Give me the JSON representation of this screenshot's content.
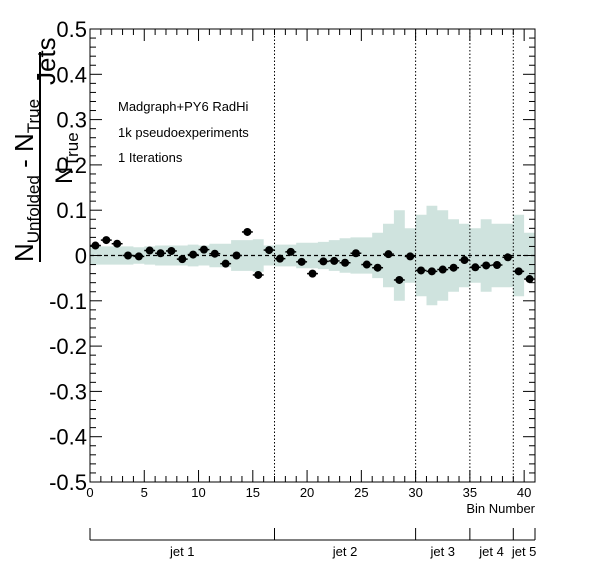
{
  "chart_data": {
    "type": "scatter",
    "title": "",
    "xlabel": "Bin Number",
    "ylabel": {
      "main": "N",
      "sub1": "Unfolded",
      "minus": " - N",
      "sub2": "True",
      "tail": "Jets",
      "denom": "N",
      "denom_sub": "True"
    },
    "xlim": [
      0,
      41
    ],
    "ylim": [
      -0.5,
      0.5
    ],
    "x_ticks": [
      0,
      5,
      10,
      15,
      20,
      25,
      30,
      35,
      40
    ],
    "y_ticks": [
      -0.5,
      -0.4,
      -0.3,
      -0.2,
      -0.1,
      0,
      0.1,
      0.2,
      0.3,
      0.4,
      0.5
    ],
    "y_tick_labels": [
      "-0.5",
      "-0.4",
      "-0.3",
      "-0.2",
      "-0.1",
      "0",
      "0.1",
      "0.2",
      "0.3",
      "0.4",
      "0.5"
    ],
    "annotations": [
      "Madgraph+PY6 RadHi",
      "1k pseudoexperiments",
      "1 Iterations"
    ],
    "reference_line_y": 0,
    "jet_boundaries": [
      17,
      30,
      35,
      39
    ],
    "jet_groups": [
      {
        "label": "jet 1",
        "start": 0,
        "end": 17
      },
      {
        "label": "jet 2",
        "start": 17,
        "end": 30
      },
      {
        "label": "jet 3",
        "start": 30,
        "end": 35
      },
      {
        "label": "jet 4",
        "start": 35,
        "end": 39
      },
      {
        "label": "jet 5",
        "start": 39,
        "end": 41
      }
    ],
    "x": [
      0.5,
      1.5,
      2.5,
      3.5,
      4.5,
      5.5,
      6.5,
      7.5,
      8.5,
      9.5,
      10.5,
      11.5,
      12.5,
      13.5,
      14.5,
      15.5,
      16.5,
      17.5,
      18.5,
      19.5,
      20.5,
      21.5,
      22.5,
      23.5,
      24.5,
      25.5,
      26.5,
      27.5,
      28.5,
      29.5,
      30.5,
      31.5,
      32.5,
      33.5,
      34.5,
      35.5,
      36.5,
      37.5,
      38.5,
      39.5,
      40.5
    ],
    "y": [
      0.022,
      0.034,
      0.026,
      0.0,
      -0.002,
      0.011,
      0.005,
      0.01,
      -0.008,
      0.002,
      0.013,
      0.004,
      -0.018,
      0.0,
      0.052,
      -0.043,
      0.012,
      -0.007,
      0.008,
      -0.014,
      -0.04,
      -0.013,
      -0.012,
      -0.016,
      0.005,
      -0.02,
      -0.027,
      0.003,
      -0.054,
      -0.002,
      -0.033,
      -0.035,
      -0.031,
      -0.027,
      -0.01,
      -0.026,
      -0.022,
      -0.021,
      -0.004,
      -0.035,
      -0.052
    ],
    "yerr": [
      0.008,
      0.008,
      0.008,
      0.008,
      0.008,
      0.008,
      0.008,
      0.008,
      0.008,
      0.008,
      0.008,
      0.008,
      0.008,
      0.008,
      0.008,
      0.008,
      0.008,
      0.008,
      0.008,
      0.008,
      0.008,
      0.008,
      0.008,
      0.008,
      0.008,
      0.008,
      0.008,
      0.008,
      0.008,
      0.008,
      0.008,
      0.008,
      0.008,
      0.008,
      0.008,
      0.008,
      0.008,
      0.008,
      0.008,
      0.008,
      0.008
    ],
    "band_halfwidth": [
      0.02,
      0.02,
      0.02,
      0.02,
      0.018,
      0.02,
      0.022,
      0.022,
      0.022,
      0.024,
      0.022,
      0.026,
      0.026,
      0.034,
      0.034,
      0.036,
      0.022,
      0.024,
      0.024,
      0.028,
      0.028,
      0.03,
      0.034,
      0.038,
      0.04,
      0.04,
      0.05,
      0.07,
      0.1,
      0.06,
      0.09,
      0.11,
      0.1,
      0.08,
      0.07,
      0.06,
      0.08,
      0.07,
      0.07,
      0.09,
      0.05
    ],
    "colors": {
      "points": "#000000",
      "band": "#cfe3de",
      "reference_line": "#000000"
    }
  }
}
